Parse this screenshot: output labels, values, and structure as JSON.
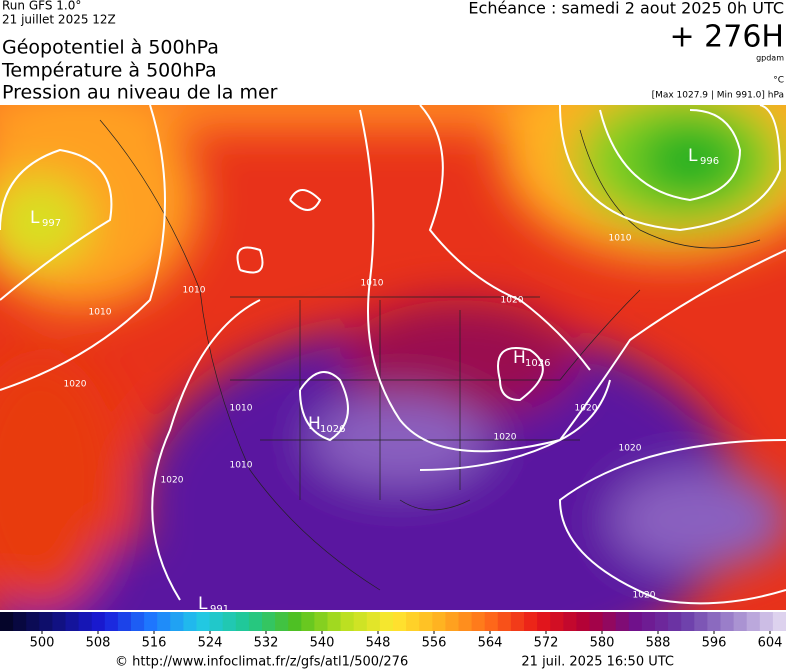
{
  "header": {
    "run": "Run GFS 1.0°",
    "run_date": "21 juillet 2025 12Z",
    "titles": [
      "Géopotentiel à 500hPa",
      "Température à 500hPa",
      "Pression au niveau de la mer"
    ],
    "valid": "Echéance : samedi 2 aout 2025 0h UTC",
    "lead": "+ 276H",
    "unit_geo": "gpdam",
    "unit_temp": "°C",
    "pressure_range": "[Max 1027.9 | Min 991.0] hPa"
  },
  "map": {
    "centers": [
      {
        "type": "L",
        "value": 997
      },
      {
        "type": "L",
        "value": 996
      },
      {
        "type": "H",
        "value": 1026
      },
      {
        "type": "H",
        "value": 1026
      },
      {
        "type": "L",
        "value": 991
      }
    ],
    "isobar_labels": [
      1010,
      1010,
      1010,
      1020,
      1020,
      1010,
      1020,
      1020,
      1010,
      1020,
      1020,
      1010,
      1020
    ]
  },
  "colorbar": {
    "ticks": [
      500,
      508,
      516,
      524,
      532,
      540,
      548,
      556,
      564,
      572,
      580,
      588,
      596,
      604
    ],
    "colors": [
      "#05052a",
      "#10107a",
      "#1a1ad8",
      "#1e78ff",
      "#22c8e8",
      "#20c890",
      "#50c020",
      "#b8e020",
      "#ffe830",
      "#ffb020",
      "#ff6a1a",
      "#e81818",
      "#b00038",
      "#70108a",
      "#6a3aa8",
      "#9e84cc",
      "#ddd2ee"
    ]
  },
  "footer": {
    "url": "© http://www.infoclimat.fr/z/gfs/atl1/500/276",
    "generated": "21 juil. 2025 16:50 UTC"
  }
}
